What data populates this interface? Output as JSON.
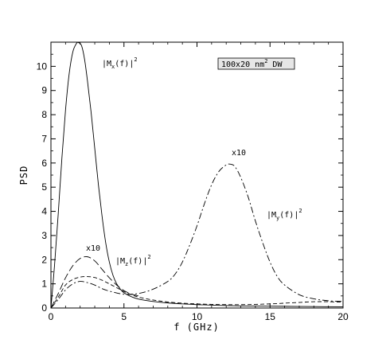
{
  "chart_data": {
    "type": "line",
    "xlabel": "f  (GHz)",
    "ylabel": "PSD",
    "xlim": [
      0,
      20
    ],
    "ylim": [
      0,
      11
    ],
    "xticks": [
      0,
      5,
      10,
      15,
      20
    ],
    "yticks": [
      0,
      1,
      2,
      3,
      4,
      5,
      6,
      7,
      8,
      9,
      10
    ],
    "grid": false,
    "series": [
      {
        "name": "|Mx(f)|^2",
        "style": "solid",
        "x": [
          0,
          0.25,
          0.5,
          0.75,
          1.0,
          1.25,
          1.5,
          1.75,
          1.9,
          2.1,
          2.3,
          2.5,
          2.75,
          3.0,
          3.25,
          3.5,
          3.75,
          4.0,
          4.25,
          4.5,
          4.75,
          5.0,
          5.5,
          6.0,
          7.0,
          8.0,
          9.0,
          10.0,
          12.0,
          14.0,
          16.0,
          18.0,
          20.0
        ],
        "values": [
          0.0,
          1.8,
          3.9,
          6.2,
          8.2,
          9.7,
          10.6,
          10.95,
          10.98,
          10.85,
          10.3,
          9.4,
          8.1,
          6.6,
          5.1,
          3.8,
          2.7,
          1.9,
          1.35,
          1.0,
          0.78,
          0.63,
          0.47,
          0.37,
          0.27,
          0.21,
          0.17,
          0.14,
          0.1,
          0.08,
          0.07,
          0.06,
          0.05
        ]
      },
      {
        "name": "|My(f)|^2",
        "style": "dashdot",
        "x": [
          0,
          0.5,
          1.0,
          1.5,
          2.0,
          2.5,
          3.0,
          3.5,
          4.0,
          5.0,
          6.0,
          7.0,
          8.0,
          8.5,
          9.0,
          9.5,
          10.0,
          10.5,
          11.0,
          11.5,
          12.0,
          12.3,
          12.6,
          13.0,
          13.5,
          14.0,
          14.5,
          15.0,
          15.5,
          16.0,
          17.0,
          18.0,
          19.0,
          20.0
        ],
        "values": [
          0.0,
          0.35,
          0.75,
          1.0,
          1.1,
          1.05,
          0.95,
          0.8,
          0.7,
          0.57,
          0.6,
          0.78,
          1.1,
          1.4,
          1.9,
          2.6,
          3.4,
          4.3,
          5.1,
          5.65,
          5.92,
          5.95,
          5.85,
          5.4,
          4.6,
          3.6,
          2.7,
          1.9,
          1.3,
          0.95,
          0.55,
          0.38,
          0.3,
          0.27
        ]
      },
      {
        "name": "|Mz(f)|^2",
        "style": "dashed",
        "x": [
          0,
          0.5,
          1.0,
          1.5,
          2.0,
          2.5,
          3.0,
          3.5,
          4.0,
          4.5,
          5.0,
          5.5,
          6.0,
          7.0,
          8.0,
          9.0,
          10.0,
          11.0,
          12.0,
          13.0,
          14.0,
          15.0,
          16.0,
          17.0,
          18.0,
          19.0,
          20.0
        ],
        "values": [
          0.0,
          0.45,
          0.95,
          1.18,
          1.28,
          1.3,
          1.26,
          1.15,
          1.0,
          0.84,
          0.68,
          0.55,
          0.45,
          0.33,
          0.25,
          0.2,
          0.17,
          0.15,
          0.14,
          0.14,
          0.15,
          0.17,
          0.2,
          0.23,
          0.26,
          0.26,
          0.24
        ]
      },
      {
        "name": "|Mz(f)|^2 x10",
        "style": "longdash",
        "x": [
          0,
          0.5,
          1.0,
          1.5,
          2.0,
          2.5,
          3.0,
          3.5,
          4.0,
          4.5,
          5.0,
          5.5,
          6.0
        ],
        "values": [
          0.0,
          0.6,
          1.25,
          1.75,
          2.05,
          2.12,
          1.95,
          1.6,
          1.25,
          0.95,
          0.72,
          0.58,
          0.5
        ]
      }
    ],
    "annotations": {
      "mx_label": "|M",
      "mx_sub": "x",
      "mx_rest": "(f)|",
      "mx_sup": "2",
      "my_label": "|M",
      "my_sub": "y",
      "my_rest": "(f)|",
      "my_sup": "2",
      "mz_label": "|M",
      "mz_sub": "z",
      "mz_rest": "(f)|",
      "mz_sup": "2",
      "x10_y": "x10",
      "x10_z": "x10",
      "box_text": "100x20 nm",
      "box_sup": "2",
      "box_rest": " DW"
    }
  }
}
